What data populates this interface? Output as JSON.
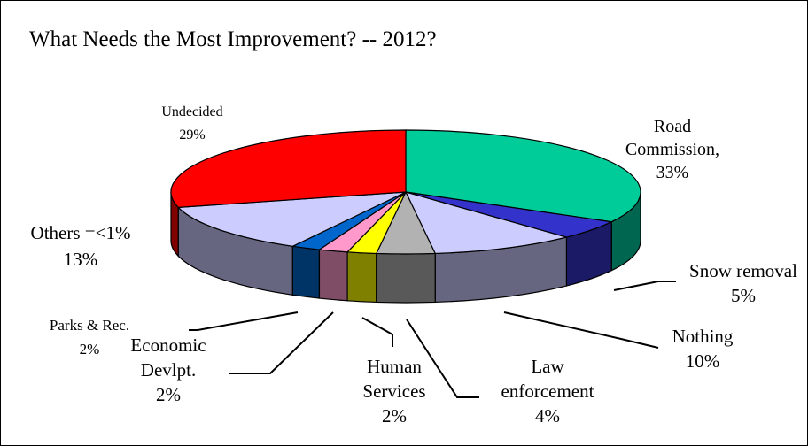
{
  "title": "What Needs the Most Improvement? -- 2012?",
  "chart_data": {
    "type": "pie",
    "title": "What Needs the Most Improvement? -- 2012?",
    "three_d": true,
    "legend": "none",
    "slices": [
      {
        "name": "Road Commission",
        "value": 33,
        "label_lines": [
          "Road",
          "Commission,",
          "33%"
        ],
        "top_color": "#00cc99",
        "side_color": "#006650"
      },
      {
        "name": "Snow removal",
        "value": 5,
        "label_lines": [
          "Snow removal",
          "5%"
        ],
        "top_color": "#3333cc",
        "side_color": "#1a1a66"
      },
      {
        "name": "Nothing",
        "value": 10,
        "label_lines": [
          "Nothing",
          "10%"
        ],
        "top_color": "#ccccff",
        "side_color": "#666680"
      },
      {
        "name": "Law enforcement",
        "value": 4,
        "label_lines": [
          "Law",
          "enforcement",
          "4%"
        ],
        "top_color": "#b2b2b2",
        "side_color": "#595959"
      },
      {
        "name": "Human Services",
        "value": 2,
        "label_lines": [
          "Human",
          "Services",
          "2%"
        ],
        "top_color": "#ffff00",
        "side_color": "#808000"
      },
      {
        "name": "Economic Devlpt.",
        "value": 2,
        "label_lines": [
          "Economic",
          "Devlpt.",
          "2%"
        ],
        "top_color": "#ff99cc",
        "side_color": "#804d66"
      },
      {
        "name": "Parks & Rec.",
        "value": 2,
        "label_lines": [
          "Parks & Rec.",
          "2%"
        ],
        "top_color": "#0066cc",
        "side_color": "#003366"
      },
      {
        "name": "Others =<1%",
        "value": 13,
        "label_lines": [
          "Others =<1%",
          "13%"
        ],
        "top_color": "#ccccff",
        "side_color": "#666680"
      },
      {
        "name": "Undecided",
        "value": 29,
        "label_lines": [
          "Undecided",
          "29%"
        ],
        "top_color": "#ff0000",
        "side_color": "#800000"
      }
    ]
  }
}
